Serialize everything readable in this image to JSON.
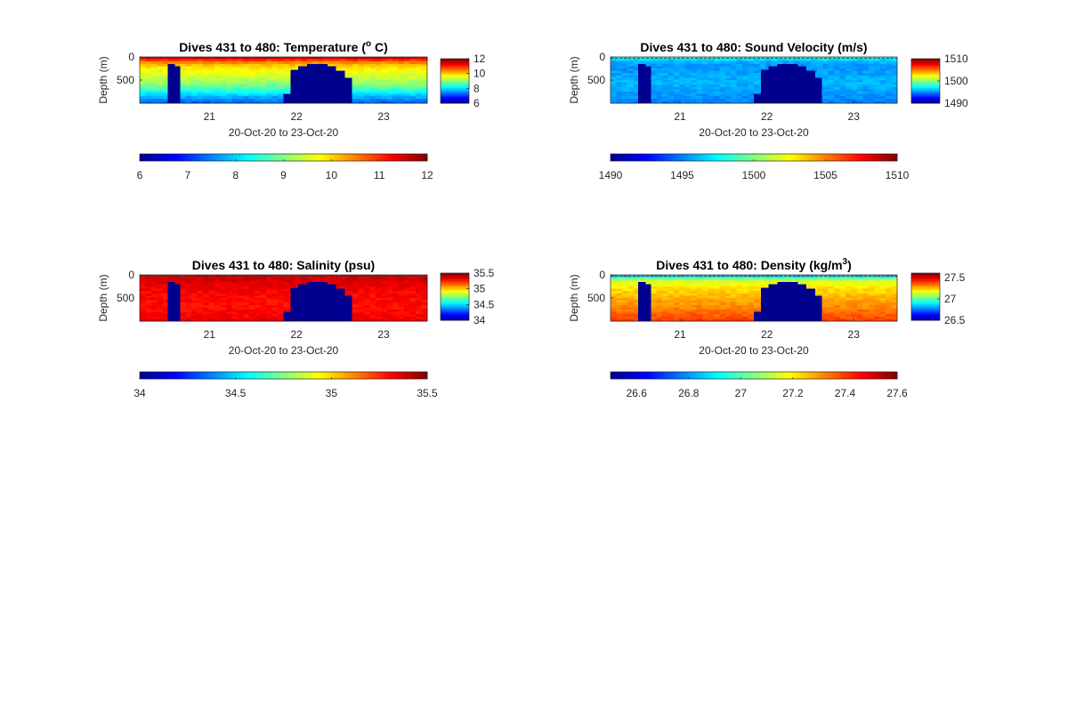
{
  "colors": {
    "jet": [
      "#00008f",
      "#0000ff",
      "#0080ff",
      "#00ffff",
      "#80ff80",
      "#ffff00",
      "#ff8000",
      "#ff0000",
      "#800000"
    ],
    "missing_fill": "#00008f",
    "axis": "#262626",
    "surface_line": "#333333"
  },
  "chart_data": [
    {
      "type": "heatmap",
      "title": "Dives 431 to 480: Temperature (",
      "title_sup": "o",
      "title_after": " C)",
      "xlabel": "20-Oct-20 to 23-Oct-20",
      "ylabel": "Depth (m)",
      "xlim": [
        20.2,
        23.5
      ],
      "ylim": [
        0,
        1000
      ],
      "xticks": [
        21,
        22,
        23
      ],
      "xtick_labels": [
        "21",
        "22",
        "23"
      ],
      "yticks": [
        0,
        500
      ],
      "ytick_labels": [
        "0",
        "500"
      ],
      "clim": [
        6,
        12
      ],
      "colorbar_ticks": [
        6,
        8,
        10,
        12
      ],
      "colorbar_tick_labels": [
        "6",
        "8",
        "10",
        "12"
      ],
      "bottom_colorbar_ticks": [
        6,
        7,
        8,
        9,
        10,
        11,
        12
      ],
      "bottom_colorbar_tick_labels": [
        "6",
        "7",
        "8",
        "9",
        "10",
        "11",
        "12"
      ],
      "profile": {
        "depths": [
          0,
          50,
          100,
          200,
          300,
          400,
          500,
          600,
          700,
          800,
          900,
          1000
        ],
        "values": [
          11.8,
          11.2,
          10.6,
          10.0,
          9.7,
          9.5,
          9.3,
          9.0,
          8.6,
          8.1,
          7.6,
          7.3
        ]
      },
      "gaps": [
        {
          "x_start": 20.52,
          "x_end": 20.6,
          "top_depth": 150
        },
        {
          "x_start": 20.6,
          "x_end": 20.66,
          "top_depth": 200
        },
        {
          "x_start": 21.85,
          "x_end": 21.93,
          "top_depth": 800
        },
        {
          "x_start": 21.93,
          "x_end": 22.02,
          "top_depth": 280
        },
        {
          "x_start": 22.02,
          "x_end": 22.12,
          "top_depth": 200
        },
        {
          "x_start": 22.12,
          "x_end": 22.35,
          "top_depth": 150
        },
        {
          "x_start": 22.35,
          "x_end": 22.45,
          "top_depth": 200
        },
        {
          "x_start": 22.45,
          "x_end": 22.55,
          "top_depth": 300
        },
        {
          "x_start": 22.55,
          "x_end": 22.63,
          "top_depth": 450
        }
      ],
      "surface_dashed": false
    },
    {
      "type": "heatmap",
      "title": "Dives 431 to 480: Sound Velocity (m/s)",
      "xlabel": "20-Oct-20 to 23-Oct-20",
      "ylabel": "Depth (m)",
      "xlim": [
        20.2,
        23.5
      ],
      "ylim": [
        0,
        1000
      ],
      "xticks": [
        21,
        22,
        23
      ],
      "xtick_labels": [
        "21",
        "22",
        "23"
      ],
      "yticks": [
        0,
        500
      ],
      "ytick_labels": [
        "0",
        "500"
      ],
      "clim": [
        1490,
        1510
      ],
      "colorbar_ticks": [
        1490,
        1500,
        1510
      ],
      "colorbar_tick_labels": [
        "1490",
        "1500",
        "1510"
      ],
      "bottom_colorbar_ticks": [
        1490,
        1495,
        1500,
        1505,
        1510
      ],
      "bottom_colorbar_tick_labels": [
        "1490",
        "1495",
        "1500",
        "1505",
        "1510"
      ],
      "profile": {
        "depths": [
          0,
          50,
          100,
          200,
          300,
          400,
          500,
          600,
          700,
          800,
          900,
          1000
        ],
        "values": [
          1498.5,
          1497.0,
          1496.0,
          1495.5,
          1495.5,
          1495.8,
          1496.0,
          1496.0,
          1495.8,
          1495.5,
          1495.2,
          1495.0
        ]
      },
      "gaps": [
        {
          "x_start": 20.52,
          "x_end": 20.6,
          "top_depth": 150
        },
        {
          "x_start": 20.6,
          "x_end": 20.66,
          "top_depth": 200
        },
        {
          "x_start": 21.85,
          "x_end": 21.93,
          "top_depth": 800
        },
        {
          "x_start": 21.93,
          "x_end": 22.02,
          "top_depth": 280
        },
        {
          "x_start": 22.02,
          "x_end": 22.12,
          "top_depth": 200
        },
        {
          "x_start": 22.12,
          "x_end": 22.35,
          "top_depth": 150
        },
        {
          "x_start": 22.35,
          "x_end": 22.45,
          "top_depth": 200
        },
        {
          "x_start": 22.45,
          "x_end": 22.55,
          "top_depth": 300
        },
        {
          "x_start": 22.55,
          "x_end": 22.63,
          "top_depth": 450
        }
      ],
      "surface_dashed": true
    },
    {
      "type": "heatmap",
      "title": "Dives 431 to 480: Salinity (psu)",
      "xlabel": "20-Oct-20 to 23-Oct-20",
      "ylabel": "Depth (m)",
      "xlim": [
        20.2,
        23.5
      ],
      "ylim": [
        0,
        1000
      ],
      "xticks": [
        21,
        22,
        23
      ],
      "xtick_labels": [
        "21",
        "22",
        "23"
      ],
      "yticks": [
        0,
        500
      ],
      "ytick_labels": [
        "0",
        "500"
      ],
      "clim": [
        34,
        35.5
      ],
      "colorbar_ticks": [
        34,
        34.5,
        35,
        35.5
      ],
      "colorbar_tick_labels": [
        "34",
        "34.5",
        "35",
        "35.5"
      ],
      "bottom_colorbar_ticks": [
        34,
        34.5,
        35,
        35.5
      ],
      "bottom_colorbar_tick_labels": [
        "34",
        "34.5",
        "35",
        "35.5"
      ],
      "profile": {
        "depths": [
          0,
          100,
          300,
          500,
          700,
          900,
          1000
        ],
        "values": [
          35.36,
          35.38,
          35.33,
          35.3,
          35.3,
          35.32,
          35.35
        ]
      },
      "gaps": [
        {
          "x_start": 20.52,
          "x_end": 20.6,
          "top_depth": 150
        },
        {
          "x_start": 20.6,
          "x_end": 20.66,
          "top_depth": 200
        },
        {
          "x_start": 21.85,
          "x_end": 21.93,
          "top_depth": 800
        },
        {
          "x_start": 21.93,
          "x_end": 22.02,
          "top_depth": 280
        },
        {
          "x_start": 22.02,
          "x_end": 22.12,
          "top_depth": 200
        },
        {
          "x_start": 22.12,
          "x_end": 22.35,
          "top_depth": 150
        },
        {
          "x_start": 22.35,
          "x_end": 22.45,
          "top_depth": 200
        },
        {
          "x_start": 22.45,
          "x_end": 22.55,
          "top_depth": 300
        },
        {
          "x_start": 22.55,
          "x_end": 22.63,
          "top_depth": 450
        }
      ],
      "surface_dashed": true
    },
    {
      "type": "heatmap",
      "title": "Dives 431 to 480: Density (kg/m",
      "title_sup": "3",
      "title_after": ")",
      "xlabel": "20-Oct-20 to 23-Oct-20",
      "ylabel": "Depth (m)",
      "xlim": [
        20.2,
        23.5
      ],
      "ylim": [
        0,
        1000
      ],
      "xticks": [
        21,
        22,
        23
      ],
      "xtick_labels": [
        "21",
        "22",
        "23"
      ],
      "yticks": [
        0,
        500
      ],
      "ytick_labels": [
        "0",
        "500"
      ],
      "clim": [
        26.5,
        27.6
      ],
      "colorbar_ticks": [
        26.5,
        27,
        27.5
      ],
      "colorbar_tick_labels": [
        "26.5",
        "27",
        "27.5"
      ],
      "bottom_colorbar_ticks": [
        26.6,
        26.8,
        27,
        27.2,
        27.4,
        27.6
      ],
      "bottom_colorbar_tick_labels": [
        "26.6",
        "26.8",
        "27",
        "27.2",
        "27.4",
        "27.6"
      ],
      "profile": {
        "depths": [
          0,
          50,
          100,
          200,
          300,
          500,
          700,
          900,
          1000
        ],
        "values": [
          26.75,
          26.95,
          27.1,
          27.18,
          27.22,
          27.27,
          27.32,
          27.37,
          27.4
        ]
      },
      "gaps": [
        {
          "x_start": 20.52,
          "x_end": 20.6,
          "top_depth": 150
        },
        {
          "x_start": 20.6,
          "x_end": 20.66,
          "top_depth": 200
        },
        {
          "x_start": 21.85,
          "x_end": 21.93,
          "top_depth": 800
        },
        {
          "x_start": 21.93,
          "x_end": 22.02,
          "top_depth": 280
        },
        {
          "x_start": 22.02,
          "x_end": 22.12,
          "top_depth": 200
        },
        {
          "x_start": 22.12,
          "x_end": 22.35,
          "top_depth": 150
        },
        {
          "x_start": 22.35,
          "x_end": 22.45,
          "top_depth": 200
        },
        {
          "x_start": 22.45,
          "x_end": 22.55,
          "top_depth": 300
        },
        {
          "x_start": 22.55,
          "x_end": 22.63,
          "top_depth": 450
        }
      ],
      "surface_dashed": true
    }
  ]
}
